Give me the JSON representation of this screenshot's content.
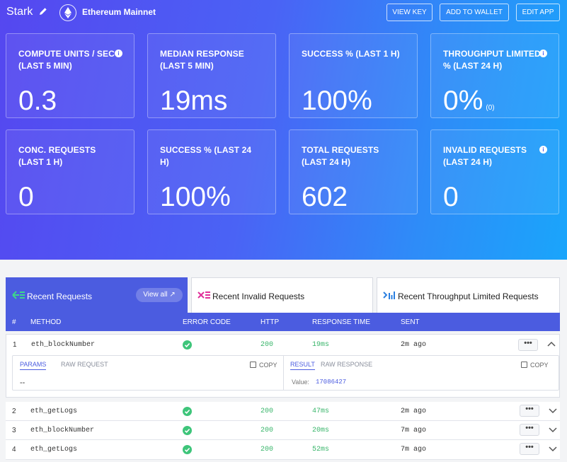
{
  "header": {
    "app_name": "Stark",
    "network": "Ethereum Mainnet",
    "buttons": {
      "view_key": "VIEW KEY",
      "add_to_wallet": "ADD TO WALLET",
      "edit_app": "EDIT APP"
    }
  },
  "stats": [
    {
      "label": "COMPUTE UNITS / SEC (LAST 5 MIN)",
      "value": "0.3",
      "sub": "",
      "info": "i"
    },
    {
      "label": "MEDIAN RESPONSE (LAST 5 MIN)",
      "value": "19ms",
      "sub": "",
      "info": ""
    },
    {
      "label": "SUCCESS % (LAST 1 H)",
      "value": "100%",
      "sub": "",
      "info": ""
    },
    {
      "label": "THROUGHPUT LIMITED % (LAST 24 H)",
      "value": "0%",
      "sub": "(0)",
      "info": "i"
    },
    {
      "label": "CONC. REQUESTS (LAST 1 H)",
      "value": "0",
      "sub": "",
      "info": ""
    },
    {
      "label": "SUCCESS % (LAST 24 H)",
      "value": "100%",
      "sub": "",
      "info": ""
    },
    {
      "label": "TOTAL REQUESTS (LAST 24 H)",
      "value": "602",
      "sub": "",
      "info": ""
    },
    {
      "label": "INVALID REQUESTS (LAST 24 H)",
      "value": "0",
      "sub": "",
      "info": "i"
    }
  ],
  "tabs": {
    "recent": "Recent Requests",
    "view_all": "View all ↗",
    "invalid": "Recent Invalid Requests",
    "throughput": "Recent Throughput Limited Requests"
  },
  "table": {
    "headers": {
      "num": "#",
      "method": "METHOD",
      "error": "ERROR CODE",
      "http": "HTTP",
      "resp": "RESPONSE TIME",
      "sent": "SENT"
    },
    "rows": [
      {
        "num": "1",
        "method": "eth_blockNumber",
        "http": "200",
        "time": "19ms",
        "sent": "2m ago",
        "dots": "•••",
        "expanded": true
      },
      {
        "num": "2",
        "method": "eth_getLogs",
        "http": "200",
        "time": "47ms",
        "sent": "2m ago",
        "dots": "•••"
      },
      {
        "num": "3",
        "method": "eth_blockNumber",
        "http": "200",
        "time": "20ms",
        "sent": "7m ago",
        "dots": "•••"
      },
      {
        "num": "4",
        "method": "eth_getLogs",
        "http": "200",
        "time": "52ms",
        "sent": "7m ago",
        "dots": "•••"
      }
    ]
  },
  "detail": {
    "params_tab": "PARAMS",
    "raw_request_tab": "RAW REQUEST",
    "copy": "COPY",
    "params_value": "--",
    "result_tab": "RESULT",
    "raw_response_tab": "RAW RESPONSE",
    "value_label": "Value:",
    "value": "17086427"
  }
}
